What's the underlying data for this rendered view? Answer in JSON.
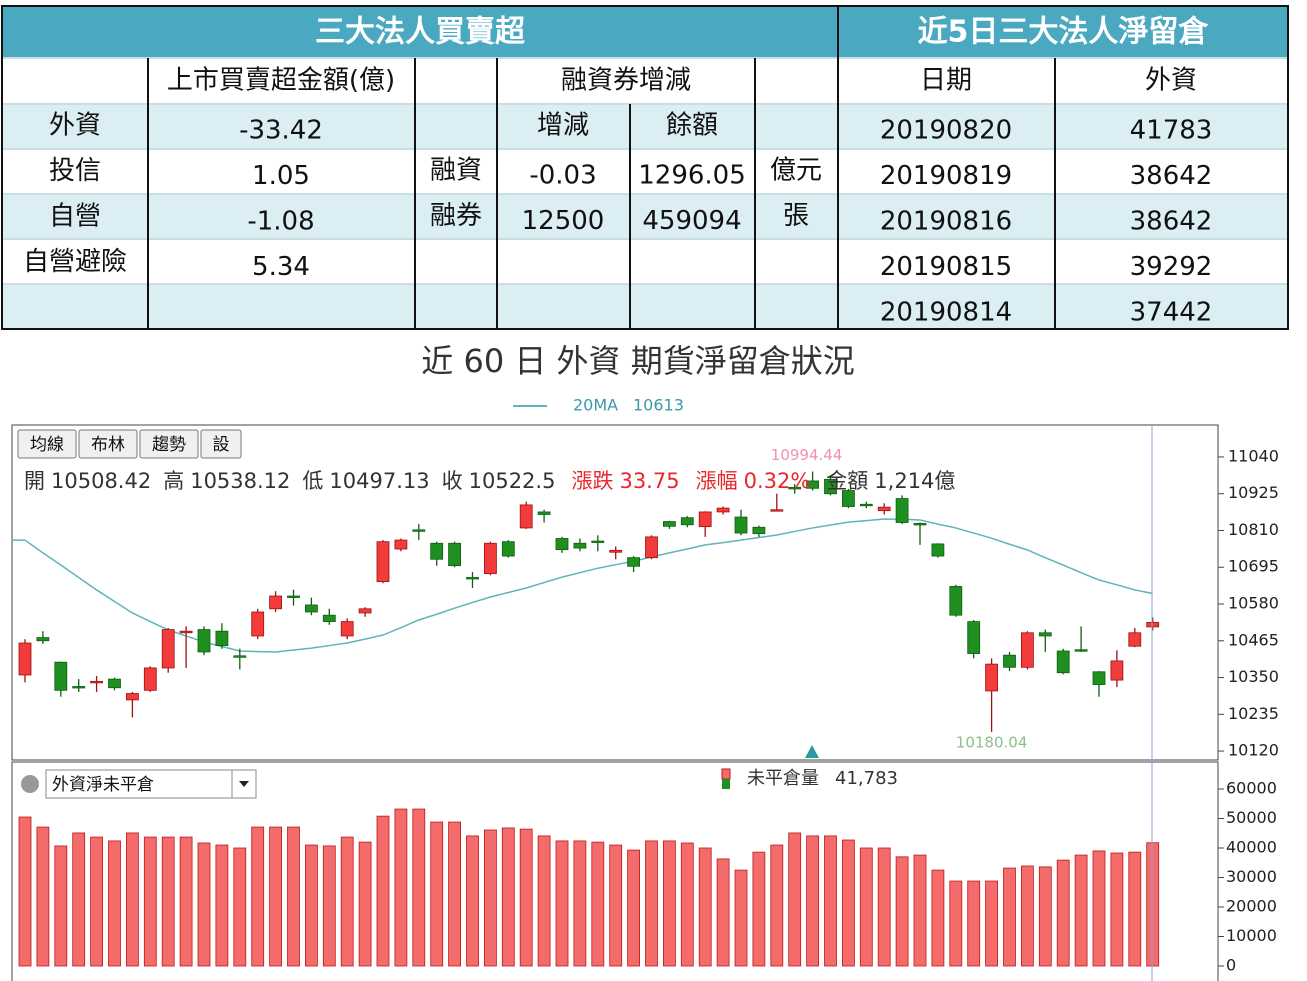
{
  "summary": {
    "title": "三大法人買賣超",
    "columns": [
      "上市買賣超金額(億)",
      "融資券增減"
    ],
    "subcolumns": [
      "增減",
      "餘額"
    ],
    "institutions": [
      {
        "name": "外資",
        "value": -33.42
      },
      {
        "name": "投信",
        "value": 1.05
      },
      {
        "name": "自營",
        "value": -1.08
      },
      {
        "name": "自營避險",
        "value": 5.34
      }
    ],
    "margin": [
      {
        "name": "融資",
        "change": -0.03,
        "balance": 1296.05,
        "unit": "億元"
      },
      {
        "name": "融券",
        "change": 12500,
        "balance": 459094,
        "unit": "張"
      }
    ]
  },
  "positions": {
    "title": "近5日三大法人淨留倉",
    "columns": [
      "日期",
      "外資"
    ],
    "rows": [
      [
        "20190820",
        41783
      ],
      [
        "20190819",
        38642
      ],
      [
        "20190816",
        38642
      ],
      [
        "20190815",
        39292
      ],
      [
        "20190814",
        37442
      ]
    ]
  },
  "chart_title": "近 60 日 外資 期貨淨留倉狀況",
  "toolbar": [
    "均線",
    "布林",
    "趨勢",
    "設"
  ],
  "chart_data": [
    {
      "type": "candlestick",
      "open": [
        10358,
        10475,
        10398,
        10322,
        10335,
        10345,
        10280,
        10310,
        10380,
        10490,
        10500,
        10495,
        10418,
        10480,
        10565,
        10605,
        10577,
        10545,
        10480,
        10552,
        10650,
        10752,
        10812,
        10770,
        10770,
        10663,
        10675,
        10775,
        10818,
        10868,
        10785,
        10770,
        10777,
        10742,
        10725,
        10725,
        10838,
        10850,
        10822,
        10868,
        10852,
        10820,
        10872,
        10945,
        10965,
        10970,
        10935,
        10892,
        10872,
        10910,
        10832,
        10768,
        10635,
        10525,
        10308,
        10420,
        10382,
        10490,
        10433,
        10437,
        10368,
        10342,
        10448,
        10508.42
      ],
      "high": [
        10470,
        10495,
        10400,
        10345,
        10355,
        10350,
        10305,
        10385,
        10505,
        10510,
        10510,
        10520,
        10440,
        10565,
        10620,
        10625,
        10600,
        10565,
        10535,
        10570,
        10780,
        10785,
        10830,
        10775,
        10775,
        10680,
        10775,
        10780,
        10900,
        10875,
        10790,
        10785,
        10795,
        10760,
        10730,
        10795,
        10840,
        10855,
        10870,
        10885,
        10875,
        10825,
        10925,
        10955,
        10994.44,
        10980,
        10940,
        10900,
        10895,
        10920,
        10835,
        10770,
        10640,
        10530,
        10410,
        10430,
        10495,
        10500,
        10440,
        10510,
        10370,
        10435,
        10505,
        10538.12
      ],
      "low": [
        10335,
        10455,
        10290,
        10305,
        10305,
        10310,
        10225,
        10305,
        10365,
        10380,
        10420,
        10440,
        10375,
        10470,
        10555,
        10575,
        10545,
        10515,
        10470,
        10540,
        10645,
        10745,
        10780,
        10700,
        10695,
        10630,
        10670,
        10725,
        10815,
        10835,
        10740,
        10745,
        10745,
        10720,
        10680,
        10720,
        10815,
        10820,
        10790,
        10860,
        10795,
        10790,
        10870,
        10925,
        10935,
        10920,
        10880,
        10880,
        10860,
        10830,
        10765,
        10725,
        10540,
        10410,
        10180.04,
        10370,
        10375,
        10430,
        10360,
        10430,
        10290,
        10320,
        10445,
        10497.13
      ],
      "close": [
        10458,
        10465,
        10310,
        10318,
        10338,
        10318,
        10300,
        10380,
        10500,
        10495,
        10430,
        10450,
        10415,
        10555,
        10605,
        10603,
        10555,
        10525,
        10525,
        10565,
        10775,
        10780,
        10810,
        10720,
        10700,
        10660,
        10770,
        10730,
        10890,
        10860,
        10750,
        10755,
        10775,
        10748,
        10698,
        10790,
        10823,
        10828,
        10868,
        10880,
        10802,
        10800,
        10875,
        10940,
        10942,
        10925,
        10885,
        10890,
        10883,
        10835,
        10830,
        10730,
        10545,
        10425,
        10392,
        10382,
        10490,
        10480,
        10365,
        10433,
        10328,
        10402,
        10490,
        10522.5
      ],
      "up_color": "#f23b3b",
      "down_color": "#1f8f1f",
      "ma": {
        "name": "20MA",
        "color": "#5fb4ba",
        "values": [
          10780,
          10740,
          10702,
          10663,
          10624,
          10588,
          10552,
          10525,
          10499,
          10480,
          10461,
          10447,
          10433,
          10431,
          10430,
          10436,
          10442,
          10450,
          10458,
          10470,
          10483,
          10506,
          10530,
          10548,
          10567,
          10585,
          10602,
          10616,
          10630,
          10647,
          10664,
          10678,
          10692,
          10703,
          10714,
          10727,
          10740,
          10752,
          10765,
          10772,
          10780,
          10788,
          10796,
          10807,
          10818,
          10827,
          10836,
          10841,
          10846,
          10845,
          10843,
          10830,
          10818,
          10802,
          10786,
          10767,
          10749,
          10725,
          10702,
          10678,
          10655,
          10640,
          10624,
          10613
        ]
      },
      "ylim": [
        10092,
        11140
      ],
      "yticks": [
        11040,
        10925,
        10810,
        10695,
        10580,
        10465,
        10350,
        10235,
        10120
      ],
      "grid": false,
      "ohlc_labels": [
        "開",
        "高",
        "低",
        "收"
      ],
      "info": [
        {
          "label": "漲跌",
          "value": "33.75",
          "color": "#e8262b"
        },
        {
          "label": "漲幅",
          "value": "0.32%",
          "color": "#e8262b"
        },
        {
          "label": "金額",
          "value": "1,214億",
          "color": "#333333"
        }
      ],
      "high_annotation_color": "#f291b5",
      "low_annotation_color": "#8dbf8d"
    },
    {
      "type": "bar",
      "selector": "外資淨未平倉",
      "series": [
        {
          "name": "未平倉量",
          "color": "#f46b6b",
          "values": [
            50500,
            47100,
            40700,
            45100,
            43700,
            42400,
            45100,
            43700,
            43700,
            43700,
            41700,
            41000,
            40000,
            47100,
            47100,
            47100,
            41000,
            40700,
            43700,
            42000,
            50800,
            53200,
            53200,
            48800,
            48800,
            44100,
            46100,
            46800,
            46400,
            44100,
            42400,
            42400,
            42000,
            41000,
            39300,
            42400,
            42400,
            41700,
            40000,
            36300,
            32500,
            38600,
            41000,
            45100,
            44100,
            44100,
            42700,
            40000,
            40000,
            37000,
            37600,
            32500,
            28800,
            28800,
            28800,
            33200,
            33900,
            33600,
            35900,
            37600,
            39000,
            38300,
            38600,
            41783
          ]
        }
      ],
      "legend_label": "41,783",
      "ylim": [
        0,
        69150
      ],
      "yticks": [
        0,
        10000,
        20000,
        30000,
        40000,
        50000,
        60000
      ],
      "grid": false
    }
  ]
}
